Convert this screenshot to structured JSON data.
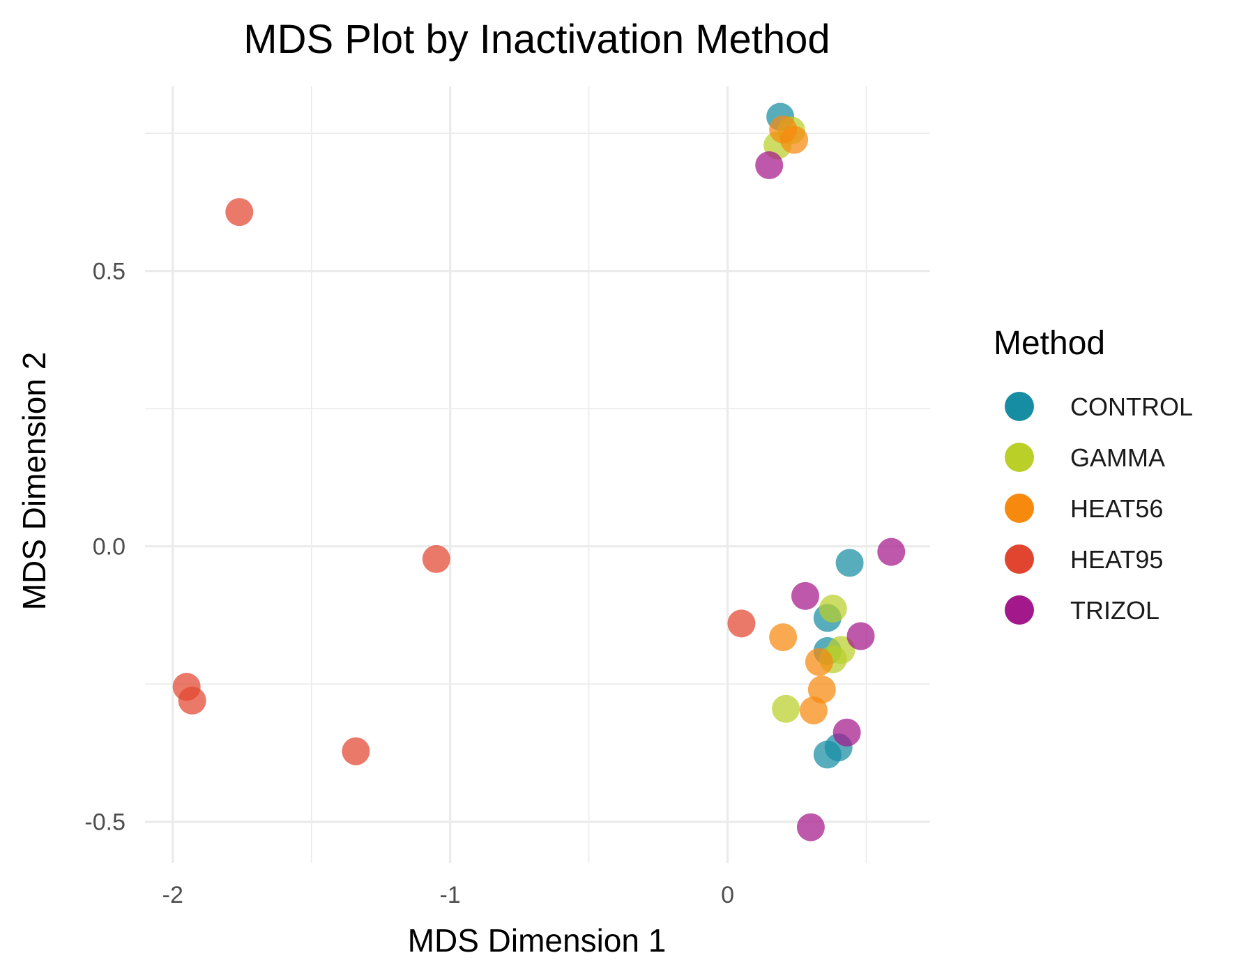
{
  "chart_data": {
    "type": "scatter",
    "title": "MDS Plot by Inactivation Method",
    "xlabel": "MDS Dimension 1",
    "ylabel": "MDS Dimension 2",
    "xlim": [
      -2.1,
      0.73
    ],
    "ylim": [
      -0.575,
      0.835
    ],
    "x_ticks": [
      -2,
      -1,
      0
    ],
    "x_tick_labels": [
      "-2",
      "-1",
      "0"
    ],
    "y_ticks": [
      -0.5,
      0.0,
      0.5
    ],
    "y_tick_labels": [
      "-0.5",
      "0.0",
      "0.5"
    ],
    "grid": true,
    "legend": {
      "title": "Method",
      "position": "right"
    },
    "series": [
      {
        "name": "CONTROL",
        "color": "#178da4",
        "points": [
          [
            0.19,
            0.78
          ],
          [
            0.44,
            -0.03
          ],
          [
            0.36,
            -0.13
          ],
          [
            0.36,
            -0.19
          ],
          [
            0.4,
            -0.365
          ],
          [
            0.36,
            -0.378
          ]
        ]
      },
      {
        "name": "GAMMA",
        "color": "#bacf28",
        "points": [
          [
            0.23,
            0.755
          ],
          [
            0.18,
            0.728
          ],
          [
            0.38,
            -0.113
          ],
          [
            0.41,
            -0.188
          ],
          [
            0.38,
            -0.205
          ],
          [
            0.21,
            -0.295
          ]
        ]
      },
      {
        "name": "HEAT56",
        "color": "#f7890e",
        "points": [
          [
            0.2,
            0.757
          ],
          [
            0.24,
            0.738
          ],
          [
            0.2,
            -0.165
          ],
          [
            0.33,
            -0.21
          ],
          [
            0.34,
            -0.26
          ],
          [
            0.31,
            -0.298
          ]
        ]
      },
      {
        "name": "HEAT95",
        "color": "#e2452f",
        "points": [
          [
            -1.76,
            0.607
          ],
          [
            -1.05,
            -0.023
          ],
          [
            0.05,
            -0.14
          ],
          [
            -1.95,
            -0.255
          ],
          [
            -1.93,
            -0.28
          ],
          [
            -1.34,
            -0.372
          ]
        ]
      },
      {
        "name": "TRIZOL",
        "color": "#a3188a",
        "points": [
          [
            0.15,
            0.692
          ],
          [
            0.59,
            -0.01
          ],
          [
            0.28,
            -0.09
          ],
          [
            0.48,
            -0.163
          ],
          [
            0.43,
            -0.338
          ],
          [
            0.3,
            -0.51
          ]
        ]
      }
    ]
  }
}
